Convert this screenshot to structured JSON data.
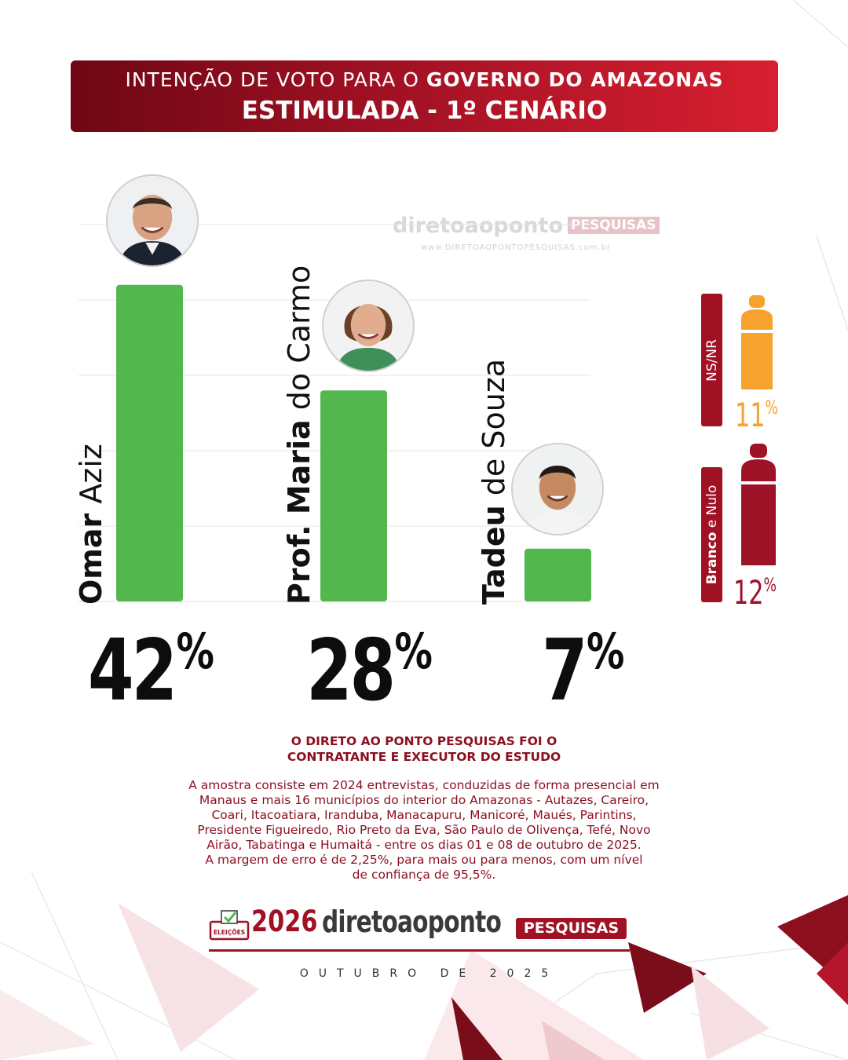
{
  "header": {
    "line1_regular": "INTENÇÃO DE VOTO PARA O ",
    "line1_bold": "GOVERNO DO AMAZONAS",
    "line2": "ESTIMULADA - 1º CENÁRIO"
  },
  "watermark": {
    "brand": "diretoaoponto",
    "badge": "PESQUISAS",
    "url": "www.DIRETOAOPONTOPESQUISAS.com.br"
  },
  "chart_data": {
    "type": "bar",
    "categories": [
      "Omar Aziz",
      "Prof. Maria do Carmo",
      "Tadeu de Souza"
    ],
    "values": [
      42,
      28,
      7
    ],
    "unit": "%",
    "ylim": [
      0,
      50
    ],
    "grid": true,
    "labels": [
      {
        "bold": "Omar",
        "light": " Aziz",
        "value": "42",
        "sign": "%"
      },
      {
        "bold": "Prof. Maria",
        "light": " do Carmo",
        "value": "28",
        "sign": "%"
      },
      {
        "bold": "Tadeu",
        "light": " de Souza",
        "value": "7",
        "sign": "%"
      }
    ],
    "bar_color": "#52b74d",
    "others": [
      {
        "label": "NS/NR",
        "value": 11,
        "display": "11",
        "sign": "%",
        "color": "#f6a22f"
      },
      {
        "label_bold": "Branco",
        "label_rest": " e Nulo",
        "value": 12,
        "display": "12",
        "sign": "%",
        "color": "#9e1328"
      }
    ]
  },
  "note": {
    "title_line1": "O DIRETO AO PONTO PESQUISAS FOI O",
    "title_line2": "CONTRATANTE E EXECUTOR DO ESTUDO",
    "body_lines": [
      "A amostra consiste em 2024 entrevistas, conduzidas de forma presencial em",
      "Manaus e mais 16 municípios do interior do Amazonas - Autazes, Careiro,",
      "Coari, Itacoatiara, Iranduba, Manacapuru, Manicoré, Maués, Parintins,",
      "Presidente Figueiredo, Rio Preto da Eva, São Paulo de Olivença, Tefé, Novo",
      "Airão, Tabatinga e Humaitá - entre os dias 01 e 08 de outubro de 2025.",
      "A margem de erro é de 2,25%, para mais ou para menos, com um nível",
      "de confiança de 95,5%."
    ]
  },
  "footer": {
    "ballot_label": "ELEIÇÕES",
    "year": "2026",
    "brand": "diretoaoponto",
    "badge": "PESQUISAS",
    "date": "OUTUBRO DE 2025"
  },
  "colors": {
    "brand_red": "#a11124",
    "bar_green": "#52b74d",
    "nsnr_orange": "#f6a22f",
    "branco_red": "#9e1328"
  }
}
